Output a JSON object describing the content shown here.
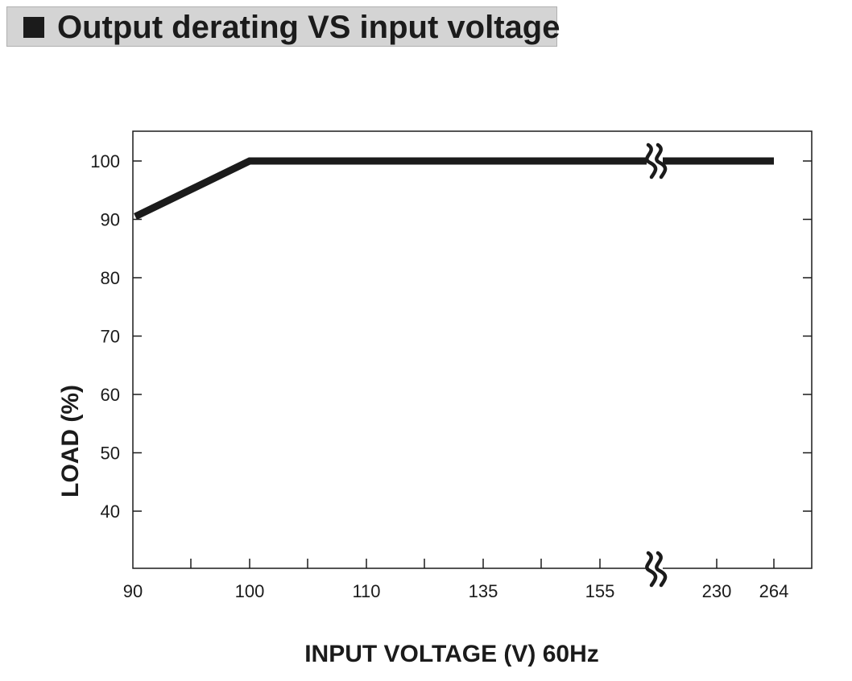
{
  "title": "Output derating VS input voltage",
  "chart_data": {
    "type": "line",
    "title": "Output derating VS input voltage",
    "xlabel": "INPUT VOLTAGE (V) 60Hz",
    "ylabel": "LOAD (%)",
    "x_tick_labels": [
      "90",
      "100",
      "110",
      "135",
      "155",
      "230",
      "264"
    ],
    "y_tick_labels": [
      "100",
      "90",
      "80",
      "70",
      "60",
      "50",
      "40"
    ],
    "y_ticks": [
      100,
      90,
      80,
      70,
      60,
      50,
      40
    ],
    "ylim": [
      30,
      105
    ],
    "x_axis_break": "between 155 and 230",
    "grid": false,
    "series": [
      {
        "x": [
          90,
          100,
          110,
          135,
          155,
          230,
          264
        ],
        "values": [
          90,
          100,
          100,
          100,
          100,
          100,
          100
        ]
      }
    ],
    "colors": {
      "line": "#1b1b1b",
      "axis": "#1b1b1b",
      "title_bar": "#d4d4d4"
    }
  }
}
